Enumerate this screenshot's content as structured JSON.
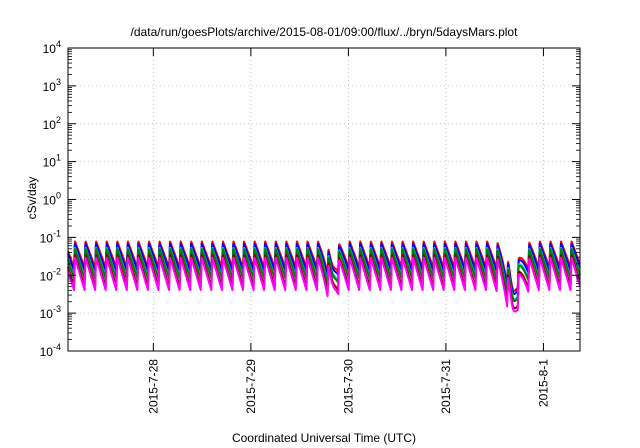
{
  "chart_data": {
    "type": "line",
    "title": "/data/run/goesPlots/archive/2015-08-01/09:00/flux/../bryn/5daysMars.plot",
    "xlabel": "Coordinated Universal Time (UTC)",
    "ylabel": "cSv/day",
    "y_scale": "log",
    "ylim": [
      0.0001,
      10000
    ],
    "xlim": [
      "2015-07-27 03:00",
      "2015-08-01 09:00"
    ],
    "x_ticks": [
      "2015-7-28",
      "2015-7-29",
      "2015-7-30",
      "2015-7-31",
      "2015-8-1"
    ],
    "y_ticks": [
      {
        "base": "10",
        "exp": "-4"
      },
      {
        "base": "10",
        "exp": "-3"
      },
      {
        "base": "10",
        "exp": "-2"
      },
      {
        "base": "10",
        "exp": "-1"
      },
      {
        "base": "10",
        "exp": "0"
      },
      {
        "base": "10",
        "exp": "1"
      },
      {
        "base": "10",
        "exp": "2"
      },
      {
        "base": "10",
        "exp": "3"
      },
      {
        "base": "10",
        "exp": "4"
      }
    ],
    "grid": true,
    "pulse": {
      "period_hours": 2.6,
      "peak_decay_hours": 2.4,
      "dips": [
        {
          "time": "2015-07-29 20:00",
          "depth_factor": 0.45,
          "width_hours": 1.5
        },
        {
          "time": "2015-07-31 16:30",
          "depth_factor": 0.12,
          "width_hours": 2.5
        }
      ]
    },
    "series": [
      {
        "color": "#ff0000",
        "peak": 0.08,
        "floor": 0.016
      },
      {
        "color": "#0000ff",
        "peak": 0.07,
        "floor": 0.013
      },
      {
        "color": "#00c0c0",
        "peak": 0.055,
        "floor": 0.009
      },
      {
        "color": "#008000",
        "peak": 0.05,
        "floor": 0.008
      },
      {
        "color": "#800000",
        "peak": 0.035,
        "floor": 0.005
      },
      {
        "color": "#ff00ff",
        "peak": 0.03,
        "floor": 0.004
      }
    ]
  }
}
